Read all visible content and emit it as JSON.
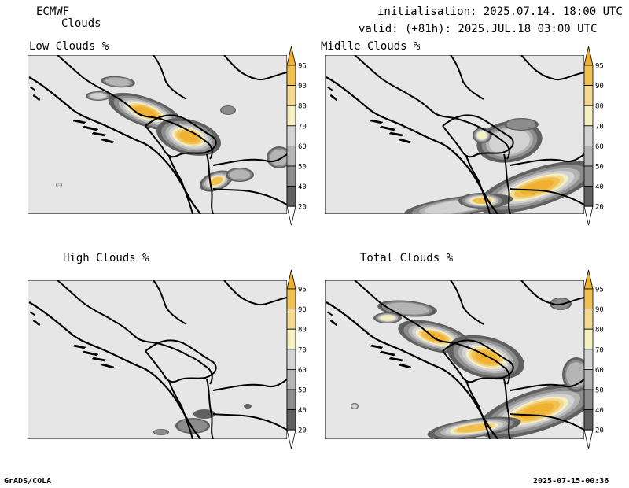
{
  "header": {
    "model": "ECMWF",
    "product": "Clouds",
    "init": "initialisation: 2025.07.14. 18:00 UTC",
    "valid": "valid: (+81h): 2025.JUL.18 03:00 UTC"
  },
  "panels": [
    {
      "title": "Low Clouds %"
    },
    {
      "title": "Midlle Clouds %"
    },
    {
      "title": "High Clouds %"
    },
    {
      "title": "Total Clouds %"
    }
  ],
  "legend": {
    "levels": [
      "20",
      "40",
      "50",
      "60",
      "70",
      "80",
      "90",
      "95"
    ],
    "colors": [
      "#ffffff",
      "#606060",
      "#8c8c8c",
      "#b4b4b4",
      "#d2d2d2",
      "#f5f0c0",
      "#f5d890",
      "#f0c050",
      "#f0b030"
    ]
  },
  "footer": {
    "left": "GrADS/COLA",
    "right": "2025-07-15-00:36"
  }
}
